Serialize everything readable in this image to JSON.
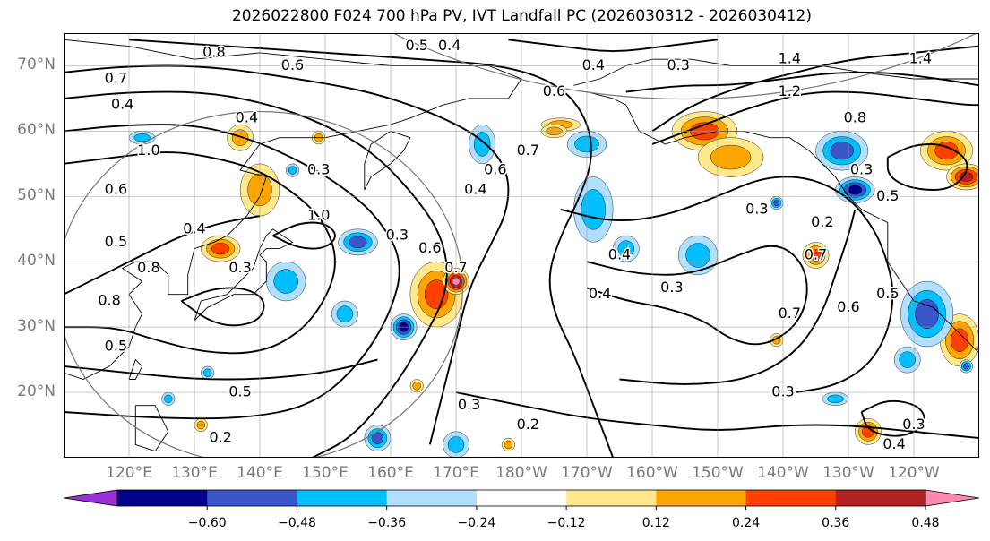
{
  "figure": {
    "title": "2026022800 F024 700 hPa PV, IVT Landfall PC (2026030312 - 2026030412)"
  },
  "map_extent": {
    "lon_min": 110,
    "lon_max": 250,
    "lat_min": 10,
    "lat_max": 75
  },
  "axes": {
    "lat_labels": [
      {
        "label": "70°N",
        "lat": 70
      },
      {
        "label": "60°N",
        "lat": 60
      },
      {
        "label": "50°N",
        "lat": 50
      },
      {
        "label": "40°N",
        "lat": 40
      },
      {
        "label": "30°N",
        "lat": 30
      },
      {
        "label": "20°N",
        "lat": 20
      }
    ],
    "lon_labels": [
      {
        "label": "120°E",
        "lon": 120
      },
      {
        "label": "130°E",
        "lon": 130
      },
      {
        "label": "140°E",
        "lon": 140
      },
      {
        "label": "150°E",
        "lon": 150
      },
      {
        "label": "160°E",
        "lon": 160
      },
      {
        "label": "170°E",
        "lon": 170
      },
      {
        "label": "180°W",
        "lon": 180
      },
      {
        "label": "170°W",
        "lon": 190
      },
      {
        "label": "160°W",
        "lon": 200
      },
      {
        "label": "150°W",
        "lon": 210
      },
      {
        "label": "140°W",
        "lon": 220
      },
      {
        "label": "130°W",
        "lon": 230
      },
      {
        "label": "120°W",
        "lon": 240
      }
    ]
  },
  "colorbar": {
    "levels": [
      -0.72,
      -0.6,
      -0.48,
      -0.36,
      -0.24,
      -0.12,
      0.12,
      0.24,
      0.36,
      0.48,
      0.6,
      0.72
    ],
    "colors": [
      "#9b30d8",
      "#00008b",
      "#3a55c8",
      "#00bfff",
      "#b0e0ff",
      "#ffffff",
      "#ffe98a",
      "#ffa500",
      "#ff4000",
      "#b22222",
      "#ff88b0"
    ],
    "tick_labels": [
      "−0.60",
      "−0.48",
      "−0.36",
      "−0.24",
      "−0.12",
      "0.12",
      "0.24",
      "0.36",
      "0.48",
      "0.60"
    ]
  },
  "pv_contour_labels": [
    {
      "text": "0.8",
      "lon": 133,
      "lat": 72
    },
    {
      "text": "0.6",
      "lon": 145,
      "lat": 70
    },
    {
      "text": "0.5",
      "lon": 164,
      "lat": 73
    },
    {
      "text": "0.4",
      "lon": 169,
      "lat": 73
    },
    {
      "text": "0.7",
      "lon": 118,
      "lat": 68
    },
    {
      "text": "0.4",
      "lon": 119,
      "lat": 64
    },
    {
      "text": "0.4",
      "lon": 138,
      "lat": 62
    },
    {
      "text": "0.6",
      "lon": 185,
      "lat": 66
    },
    {
      "text": "0.4",
      "lon": 191,
      "lat": 70
    },
    {
      "text": "0.3",
      "lon": 204,
      "lat": 70
    },
    {
      "text": "1.4",
      "lon": 221,
      "lat": 71
    },
    {
      "text": "1.2",
      "lon": 221,
      "lat": 66
    },
    {
      "text": "0.8",
      "lon": 231,
      "lat": 62
    },
    {
      "text": "1.4",
      "lon": 241,
      "lat": 71
    },
    {
      "text": "0.7",
      "lon": 181,
      "lat": 57
    },
    {
      "text": "0.6",
      "lon": 176,
      "lat": 54
    },
    {
      "text": "0.4",
      "lon": 173,
      "lat": 51
    },
    {
      "text": "1.0",
      "lon": 123,
      "lat": 57
    },
    {
      "text": "0.6",
      "lon": 118,
      "lat": 51
    },
    {
      "text": "0.3",
      "lon": 149,
      "lat": 54
    },
    {
      "text": "0.4",
      "lon": 130,
      "lat": 45
    },
    {
      "text": "1.0",
      "lon": 149,
      "lat": 47
    },
    {
      "text": "0.3",
      "lon": 161,
      "lat": 44
    },
    {
      "text": "0.6",
      "lon": 166,
      "lat": 42
    },
    {
      "text": "0.7",
      "lon": 170,
      "lat": 39
    },
    {
      "text": "0.4",
      "lon": 195,
      "lat": 41
    },
    {
      "text": "0.3",
      "lon": 216,
      "lat": 48
    },
    {
      "text": "0.2",
      "lon": 226,
      "lat": 46
    },
    {
      "text": "0.7",
      "lon": 225,
      "lat": 41
    },
    {
      "text": "0.4",
      "lon": 192,
      "lat": 35
    },
    {
      "text": "0.3",
      "lon": 203,
      "lat": 36
    },
    {
      "text": "0.5",
      "lon": 236,
      "lat": 35
    },
    {
      "text": "0.6",
      "lon": 230,
      "lat": 33
    },
    {
      "text": "0.7",
      "lon": 221,
      "lat": 32
    },
    {
      "text": "0.3",
      "lon": 232,
      "lat": 54
    },
    {
      "text": "0.5",
      "lon": 236,
      "lat": 50
    },
    {
      "text": "0.5",
      "lon": 118,
      "lat": 43
    },
    {
      "text": "0.8",
      "lon": 123,
      "lat": 39
    },
    {
      "text": "0.3",
      "lon": 137,
      "lat": 39
    },
    {
      "text": "0.8",
      "lon": 117,
      "lat": 34
    },
    {
      "text": "0.5",
      "lon": 118,
      "lat": 27
    },
    {
      "text": "0.5",
      "lon": 137,
      "lat": 20
    },
    {
      "text": "0.3",
      "lon": 172,
      "lat": 18
    },
    {
      "text": "0.2",
      "lon": 181,
      "lat": 15
    },
    {
      "text": "0.3",
      "lon": 220,
      "lat": 20
    },
    {
      "text": "0.3",
      "lon": 240,
      "lat": 15
    },
    {
      "text": "0.4",
      "lon": 237,
      "lat": 12
    },
    {
      "text": "0.2",
      "lon": 134,
      "lat": 13
    }
  ],
  "ivt_anomaly_patches": [
    {
      "lon": 140,
      "lat": 51,
      "rx": 3,
      "ry": 4,
      "value": 0.3
    },
    {
      "lon": 137,
      "lat": 59,
      "rx": 2,
      "ry": 2,
      "value": 0.3
    },
    {
      "lon": 134,
      "lat": 42,
      "rx": 3,
      "ry": 2,
      "value": 0.45
    },
    {
      "lon": 149,
      "lat": 59,
      "rx": 1,
      "ry": 1,
      "value": 0.3
    },
    {
      "lon": 167,
      "lat": 35,
      "rx": 4,
      "ry": 5,
      "value": 0.45
    },
    {
      "lon": 170,
      "lat": 37,
      "rx": 2,
      "ry": 2,
      "value": 0.6
    },
    {
      "lon": 186,
      "lat": 61,
      "rx": 3,
      "ry": 1,
      "value": 0.3
    },
    {
      "lon": 208,
      "lat": 60,
      "rx": 5,
      "ry": 3,
      "value": 0.4
    },
    {
      "lon": 212,
      "lat": 56,
      "rx": 5,
      "ry": 3,
      "value": 0.35
    },
    {
      "lon": 225,
      "lat": 41,
      "rx": 2,
      "ry": 2,
      "value": 0.45
    },
    {
      "lon": 245,
      "lat": 57,
      "rx": 4,
      "ry": 3,
      "value": 0.4
    },
    {
      "lon": 248,
      "lat": 53,
      "rx": 3,
      "ry": 2,
      "value": 0.5
    },
    {
      "lon": 233,
      "lat": 14,
      "rx": 2,
      "ry": 2,
      "value": 0.4
    },
    {
      "lon": 247,
      "lat": 28,
      "rx": 3,
      "ry": 4,
      "value": 0.45
    },
    {
      "lon": 219,
      "lat": 28,
      "rx": 1,
      "ry": 1,
      "value": 0.35
    },
    {
      "lon": 164,
      "lat": 21,
      "rx": 1,
      "ry": 1,
      "value": 0.3
    },
    {
      "lon": 131,
      "lat": 15,
      "rx": 1,
      "ry": 1,
      "value": 0.3
    },
    {
      "lon": 178,
      "lat": 12,
      "rx": 1,
      "ry": 1,
      "value": 0.25
    },
    {
      "lon": 109,
      "lat": 34,
      "rx": 1,
      "ry": 1,
      "value": 0.35
    },
    {
      "lon": 185,
      "lat": 60,
      "rx": 2,
      "ry": 1,
      "value": 0.25
    },
    {
      "lon": 126,
      "lat": 19,
      "rx": 1,
      "ry": 1,
      "value": -0.3
    },
    {
      "lon": 122,
      "lat": 59,
      "rx": 2,
      "ry": 1,
      "value": -0.3
    },
    {
      "lon": 145,
      "lat": 54,
      "rx": 1,
      "ry": 1,
      "value": -0.25
    },
    {
      "lon": 144,
      "lat": 37,
      "rx": 3,
      "ry": 3,
      "value": -0.3
    },
    {
      "lon": 155,
      "lat": 43,
      "rx": 3,
      "ry": 2,
      "value": -0.4
    },
    {
      "lon": 162,
      "lat": 30,
      "rx": 2,
      "ry": 2,
      "value": -0.5
    },
    {
      "lon": 153,
      "lat": 32,
      "rx": 2,
      "ry": 2,
      "value": -0.35
    },
    {
      "lon": 174,
      "lat": 58,
      "rx": 2,
      "ry": 3,
      "value": -0.35
    },
    {
      "lon": 191,
      "lat": 48,
      "rx": 3,
      "ry": 5,
      "value": -0.35
    },
    {
      "lon": 196,
      "lat": 42,
      "rx": 2,
      "ry": 2,
      "value": -0.35
    },
    {
      "lon": 207,
      "lat": 41,
      "rx": 3,
      "ry": 3,
      "value": -0.35
    },
    {
      "lon": 190,
      "lat": 58,
      "rx": 3,
      "ry": 2,
      "value": -0.25
    },
    {
      "lon": 229,
      "lat": 57,
      "rx": 4,
      "ry": 3,
      "value": -0.4
    },
    {
      "lon": 231,
      "lat": 51,
      "rx": 3,
      "ry": 2,
      "value": -0.5
    },
    {
      "lon": 219,
      "lat": 49,
      "rx": 1,
      "ry": 1,
      "value": -0.4
    },
    {
      "lon": 242,
      "lat": 32,
      "rx": 4,
      "ry": 5,
      "value": -0.45
    },
    {
      "lon": 239,
      "lat": 25,
      "rx": 2,
      "ry": 2,
      "value": -0.35
    },
    {
      "lon": 248,
      "lat": 24,
      "rx": 1,
      "ry": 1,
      "value": -0.45
    },
    {
      "lon": 170,
      "lat": 12,
      "rx": 2,
      "ry": 2,
      "value": -0.35
    },
    {
      "lon": 158,
      "lat": 13,
      "rx": 2,
      "ry": 2,
      "value": -0.4
    },
    {
      "lon": 228,
      "lat": 19,
      "rx": 2,
      "ry": 1,
      "value": -0.3
    },
    {
      "lon": 132,
      "lat": 23,
      "rx": 1,
      "ry": 1,
      "value": -0.3
    }
  ],
  "range_circle": {
    "center_lon": 140,
    "center_lat": 36,
    "radius_deg_lat": 27
  }
}
